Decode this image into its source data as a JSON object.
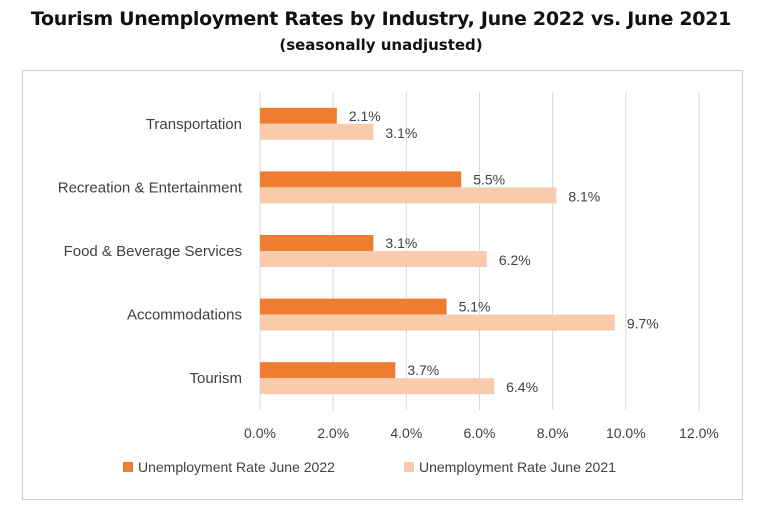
{
  "title": "Tourism Unemployment Rates by Industry, June 2022 vs. June 2021",
  "subtitle": "(seasonally unadjusted)",
  "colors": {
    "series_2022": "#ED7D31",
    "series_2021": "#F8CBAD",
    "grid": "#d9d9d9",
    "text": "#404040"
  },
  "chart_data": {
    "type": "bar",
    "orientation": "horizontal",
    "categories": [
      "Transportation",
      "Recreation & Entertainment",
      "Food & Beverage Services",
      "Accommodations",
      "Tourism"
    ],
    "series": [
      {
        "name": "Unemployment Rate June 2022",
        "values": [
          2.1,
          5.5,
          3.1,
          5.1,
          3.7
        ],
        "labels": [
          "2.1%",
          "5.5%",
          "3.1%",
          "5.1%",
          "3.7%"
        ]
      },
      {
        "name": "Unemployment Rate June 2021",
        "values": [
          3.1,
          8.1,
          6.2,
          9.7,
          6.4
        ],
        "labels": [
          "3.1%",
          "8.1%",
          "6.2%",
          "9.7%",
          "6.4%"
        ]
      }
    ],
    "xlim": [
      0,
      12
    ],
    "xticks": [
      0,
      2,
      4,
      6,
      8,
      10,
      12
    ],
    "xtick_labels": [
      "0.0%",
      "2.0%",
      "4.0%",
      "6.0%",
      "8.0%",
      "10.0%",
      "12.0%"
    ],
    "grid": "vertical",
    "legend_position": "bottom"
  }
}
